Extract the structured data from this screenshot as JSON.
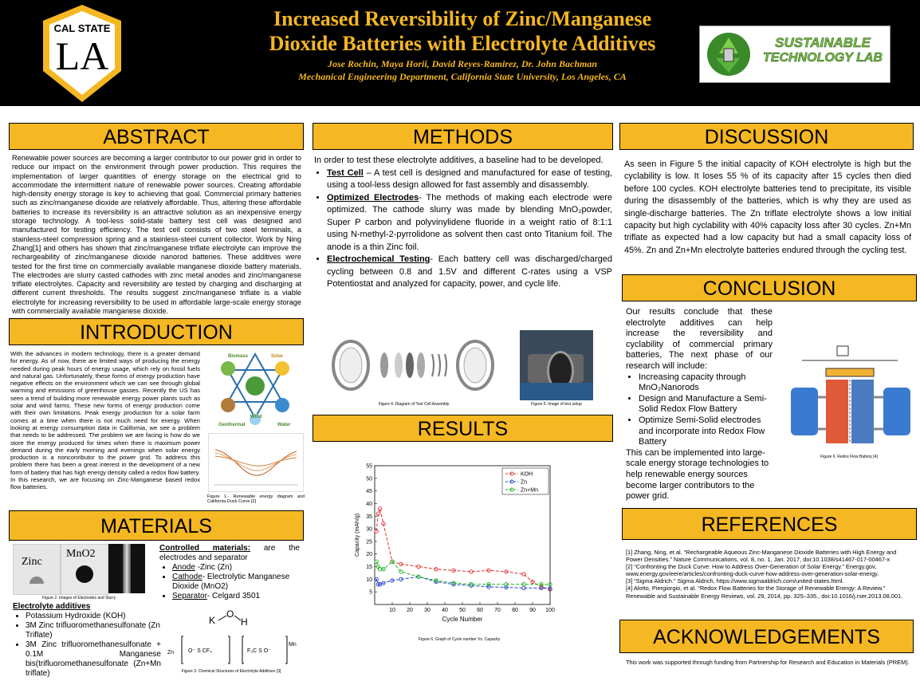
{
  "header": {
    "title_line1": "Increased Reversibility of Zinc/Manganese",
    "title_line2": "Dioxide Batteries with Electrolyte Additives",
    "authors": "Jose Rochin, Maya Horii, David Reyes-Ramirez,  Dr. John Bachman",
    "affiliation": "Mechanical  Engineering Department, California State University, Los Angeles, CA",
    "logo_left_top": "CAL STATE",
    "logo_left_big": "LA",
    "logo_right_line1": "SUSTAINABLE",
    "logo_right_line2": "TECHNOLOGY LAB"
  },
  "abstract": {
    "heading": "ABSTRACT",
    "text": "Renewable power sources are becoming a larger contributor to our power grid in order to reduce our impact on the environment through power production. This requires the implementation of larger quantities of energy storage on the electrical grid to accommodate the intermittent nature of renewable power sources. Creating affordable high-density energy storage is key to achieving that goal. Commercial primary batteries such as zinc/manganese dioxide are relatively affordable. Thus, altering these affordable batteries to increase its reversibility is an attractive solution as an inexpensive energy storage technology. A tool-less solid-state battery test cell was designed and manufactured for testing efficiency. The test cell consists of two steel terminals, a stainless-steel compression spring and a stainless-steel current collector. Work by Ning Zhang[1] and others has shown that zinc/manganese triflate electrolyte can improve the rechargeability of zinc/manganese dioxide nanorod batteries. These additives were tested for the first time on commercially available manganese dioxide battery materials. The electrodes are slurry casted cathodes with zinc metal anodes and zinc/manganese triflate electrolytes. Capacity and reversibility are tested by charging and discharging at different current thresholds. The results suggest zinc/manganese triflate is a viable electrolyte for increasing reversibility to be used in affordable large-scale energy storage with commercially available manganese dioxide."
  },
  "introduction": {
    "heading": "INTRODUCTION",
    "text": "With the advances in modern technology, there is a greater demand for energy. As of now, there are limited ways of producing the energy needed during peak hours of energy usage, which rely on fossil fuels and natural gas. Unfortunately, these forms of energy production have negative effects on the environment which we can see through global warming and emissions of greenhouse gasses. Recently the US has seen a trend of building more renewable energy power plants such as solar and wind farms. These new forms of energy production come with their own limitations. Peak energy production for a solar farm comes at a time when there is not much need for energy. When looking at energy consumption data in California, we see a problem that needs to be addressed. The problem we are facing is how do we store the energy produced for times when there is maximum power demand during the early morning and evenings when solar energy production is a nonconributor to the power grid. To address this problem there has been a great interest in the development of a new form of battery that has high energy density called a redox flow battery. In this research, we are focusing on Zinc-Manganese based redox flow batteries.",
    "fig_labels": [
      "Biomass",
      "Solar",
      "Wind",
      "Geothermal",
      "Water"
    ],
    "fig_caption": "Figure 1.- Renewable energy diagram and California Duck Curve [2]"
  },
  "materials": {
    "heading": "MATERIALS",
    "zinc_label": "Zinc",
    "mno2_label": "MnO2",
    "fig2_caption": "Figure 2. Images of Electrodes and Slurry",
    "controlled_title": "Controlled materials:",
    "controlled_rest": " are the electrodes and separator",
    "items": [
      {
        "key": "Anode",
        "val": " -Zinc (Zn)"
      },
      {
        "key": "Cathode",
        "val": "- Electrolytic Manganese Dioxide (MnO2)"
      },
      {
        "key": "Separator",
        "val": "- Celgard 3501"
      }
    ],
    "electrolyte_title": "Electrolyte additives",
    "electrolytes": [
      "Potassium Hydroxide (KOH)",
      "3M Zinc trifluoromethanesulfonate (Zn Triflate)",
      "3M Zinc trifluoromethanesulfonate + 0.1M Manganese bis(trifluoromethanesulfonate (Zn+Mn triflate)"
    ],
    "fig3_caption": "Figure 3. Chemical Structures of Electrolyte Additives [3]"
  },
  "methods": {
    "heading": "METHODS",
    "intro": "In order to test these electrolyte additives, a baseline had to be developed.",
    "items": [
      {
        "key": "Test Cell",
        "val": " – A test cell is designed and manufactured for ease of testing, using a tool-less design allowed for fast assembly and disassembly."
      },
      {
        "key": "Optimized Electrodes",
        "val": "- The methods of making each electrode were optimized. The cathode slurry was made by blending MnO₂powder, Super P carbon and polyvinylidene fluoride in a weight ratio of 8:1:1 using N-methyl-2-pyrrolidone as solvent then cast onto Titanium foil. The anode is a thin Zinc foil."
      },
      {
        "key": "Electrochemical Testing",
        "val": "- Each battery cell was discharged/charged cycling between 0.8 and 1.5V and different C-rates using a VSP Potentiostat and analyzed  for capacity, power, and cycle life."
      }
    ],
    "fig4_caption": "Figure 4. Diagram of Test Cell Assembly",
    "fig5_caption": "Figure 5. Image of test setup"
  },
  "results": {
    "heading": "RESULTS",
    "fig6_caption": "Figure 6. Graph of Cycle number Vs. Capacity"
  },
  "chart_data": {
    "type": "line",
    "xlabel": "Cycle Number",
    "ylabel": "Capacity (mAh/g)",
    "xlim": [
      0,
      100
    ],
    "ylim": [
      0,
      55
    ],
    "xticks": [
      10,
      20,
      30,
      40,
      50,
      60,
      70,
      80,
      90,
      100
    ],
    "yticks": [
      5,
      10,
      15,
      20,
      25,
      30,
      35,
      40,
      45,
      50,
      55
    ],
    "legend_position": "top-right",
    "series": [
      {
        "name": "KOH",
        "color": "#e03030",
        "x": [
          1,
          2,
          3,
          5,
          10,
          15,
          25,
          35,
          45,
          55,
          65,
          75,
          85,
          90,
          95,
          100
        ],
        "y": [
          29,
          36,
          38,
          32,
          17,
          16,
          15,
          14,
          13.5,
          13,
          13.5,
          13,
          12,
          9,
          7,
          6
        ]
      },
      {
        "name": "Zn",
        "color": "#2040d0",
        "x": [
          1,
          2,
          3,
          5,
          10,
          15,
          25,
          35,
          45,
          55,
          65,
          75,
          85,
          95,
          100
        ],
        "y": [
          10,
          8,
          8,
          8.5,
          9.5,
          10,
          11,
          9,
          8,
          7.5,
          7,
          6.8,
          6.5,
          6.5,
          6.3
        ]
      },
      {
        "name": "Zn+Mn",
        "color": "#20b020",
        "x": [
          1,
          2,
          3,
          5,
          10,
          15,
          25,
          35,
          45,
          55,
          65,
          75,
          85,
          95,
          100
        ],
        "y": [
          17,
          15,
          14,
          14,
          17,
          13,
          11,
          9.5,
          8.5,
          8,
          8,
          8,
          8,
          8,
          8
        ]
      }
    ]
  },
  "discussion": {
    "heading": "DISCUSSION",
    "text": "As seen in Figure 5  the initial capacity of KOH electrolyte is high but the cyclability is low. It loses  55 % of its capacity after 15 cycles then died before 100 cycles.  KOH electrolyte batteries tend to precipitate, its visible during the disassembly of the batteries, which is why they are used as single-discharge batteries. The Zn triflate electrolyte shows a low initial capacity but  high cyclability with 40% capacity loss after 30 cycles. Zn+Mn triflate as expected had a low capacity but had a small capacity loss of 45%. Zn and Zn+Mn electrolyte batteries endured through the cycling test."
  },
  "conclusion": {
    "heading": "CONCLUSION",
    "intro": "Our results conclude that these electrolyte additives can help increase the reversibility and cyclability of commercial primary batteries, The next phase of our research will include:",
    "items": [
      "Increasing capacity through MnO₂Nanorods",
      "Design and Manufacture a Semi-Solid Redox Flow Battery",
      "Optimize Semi-Solid electrodes and incorporate into Redox Flow Battery"
    ],
    "outro": "This can be implemented into large-scale energy storage technologies to help renewable energy sources become larger contributors to the power grid.",
    "fig7_caption": "Figure 6. Redox Flow Battery [4]"
  },
  "references": {
    "heading": "REFERENCES",
    "items": [
      "[1] Zhang, Ning, et al. “Rechargeable Aqueous Zinc-Manganese Dioxide Batteries with High Energy and Power Densities.” Nature Communications, vol. 8, no. 1, Jan. 2017, doi:10.1038/s41467-017-00467-x",
      "[2] “Confronting the Duck Curve: How to Address Over-Generation of Solar Energy.” Energy.gov, www.energy.gov/eere/articles/confronting-duck-curve-how-address-over-generation-solar-energy.",
      "[3] “Sigma Aldrich.” Sigma Aldrich, https://www.sigmaaldrich.com/united-states.html.",
      "[4] Alotto, Piergiorgio, et al. “Redox Flow Batteries for the Storage of Renewable Energy: A Review.” Renewable and Sustainable Energy Reviews, vol. 29, 2014, pp. 325–335., doi:10.1016/j.rser.2013.08.001."
    ]
  },
  "acknowledgements": {
    "heading": "ACKNOWLEDGEMENTS",
    "text": "This work was supported through funding from Partnership for Research and Education in Materials (PREM)."
  }
}
